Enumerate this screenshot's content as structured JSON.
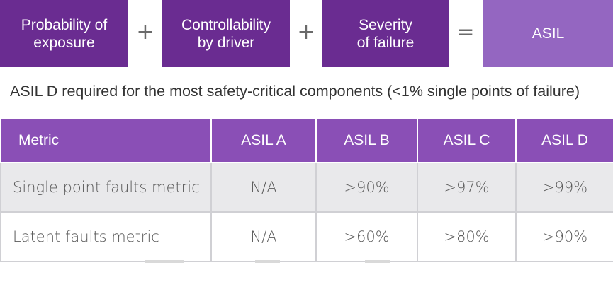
{
  "formula": {
    "probability": [
      "Probability of",
      "exposure"
    ],
    "controllability": [
      "Controllability",
      "by driver"
    ],
    "severity": [
      "Severity",
      "of failure"
    ],
    "result": "ASIL",
    "plus1": "+",
    "plus2": "+",
    "equals": "="
  },
  "caption": "ASIL D required for the most safety-critical components (<1% single points of failure)",
  "table": {
    "headers": [
      "Metric",
      "ASIL A",
      "ASIL B",
      "ASIL C",
      "ASIL D"
    ],
    "rows": [
      [
        "Single point faults metric",
        "N/A",
        ">90%",
        ">97%",
        ">99%"
      ],
      [
        "Latent faults metric",
        "N/A",
        ">60%",
        ">80%",
        ">90%"
      ]
    ]
  },
  "colors": {
    "dark_purple": "#6a2c91",
    "light_purple": "#9466c1",
    "header_purple": "#8a4fb6",
    "row_gray": "#e9e9eb"
  }
}
